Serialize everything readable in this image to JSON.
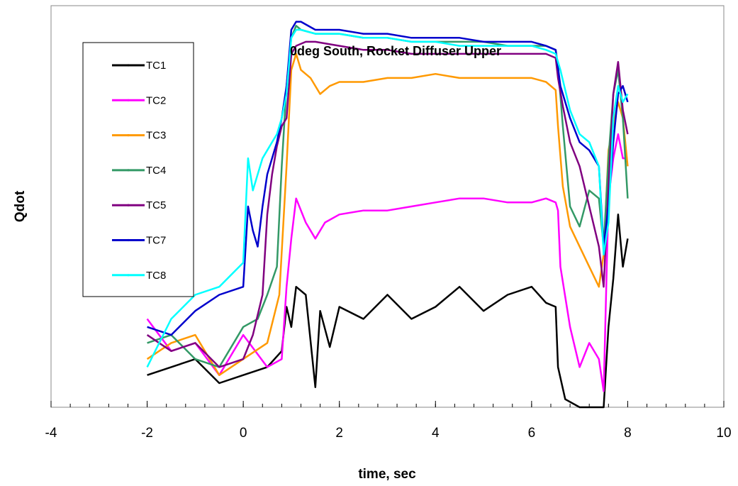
{
  "chart_data": {
    "type": "line",
    "title": "0deg South, Rocket Diffuser Upper",
    "xlabel": "time, sec",
    "ylabel": "Qdot",
    "xlim": [
      -4,
      10
    ],
    "ylim": [
      0,
      100
    ],
    "x_ticks": [
      -4,
      -2,
      0,
      2,
      4,
      6,
      8,
      10
    ],
    "x_tick_labels": [
      "-4",
      "-2",
      "0",
      "2",
      "4",
      "6",
      "8",
      "10"
    ],
    "y_ticks_labeled": false,
    "grid": false,
    "legend_position": "top-left",
    "series": [
      {
        "name": "TC1",
        "color": "#000000",
        "x": [
          -2,
          -1.5,
          -1,
          -0.5,
          0,
          0.5,
          0.8,
          0.9,
          1.0,
          1.1,
          1.3,
          1.5,
          1.6,
          1.8,
          2,
          2.5,
          3,
          3.5,
          4,
          4.5,
          5,
          5.5,
          6,
          6.3,
          6.5,
          6.55,
          6.7,
          7.0,
          7.3,
          7.5,
          7.6,
          7.7,
          7.8,
          7.9,
          8.0
        ],
        "y": [
          8,
          10,
          12,
          6,
          8,
          10,
          14,
          25,
          20,
          30,
          28,
          5,
          24,
          15,
          25,
          22,
          28,
          22,
          25,
          30,
          24,
          28,
          30,
          26,
          25,
          10,
          2,
          0,
          0,
          0,
          20,
          32,
          48,
          35,
          42
        ]
      },
      {
        "name": "TC2",
        "color": "#ff00ff",
        "x": [
          -2,
          -1.5,
          -1,
          -0.5,
          0,
          0.5,
          0.8,
          0.9,
          1.0,
          1.1,
          1.3,
          1.5,
          1.7,
          2,
          2.5,
          3,
          3.5,
          4,
          4.5,
          5,
          5.5,
          6,
          6.3,
          6.5,
          6.55,
          6.6,
          6.8,
          7.0,
          7.2,
          7.4,
          7.5,
          7.6,
          7.7,
          7.8,
          7.9,
          8.0
        ],
        "y": [
          22,
          14,
          16,
          8,
          18,
          10,
          12,
          30,
          42,
          52,
          46,
          42,
          46,
          48,
          49,
          49,
          50,
          51,
          52,
          52,
          51,
          51,
          52,
          51,
          49,
          35,
          20,
          10,
          16,
          12,
          4,
          52,
          62,
          68,
          62,
          62
        ]
      },
      {
        "name": "TC3",
        "color": "#ff9900",
        "x": [
          -2,
          -1.5,
          -1,
          -0.5,
          0,
          0.5,
          0.75,
          0.9,
          1.0,
          1.1,
          1.2,
          1.4,
          1.6,
          1.8,
          2,
          2.5,
          3,
          3.5,
          4,
          4.5,
          5,
          5.5,
          6,
          6.3,
          6.5,
          6.55,
          6.65,
          6.8,
          7.0,
          7.2,
          7.4,
          7.5,
          7.6,
          7.7,
          7.8,
          7.9,
          8.0
        ],
        "y": [
          12,
          16,
          18,
          8,
          12,
          16,
          28,
          60,
          84,
          88,
          84,
          82,
          78,
          80,
          81,
          81,
          82,
          82,
          83,
          82,
          82,
          82,
          82,
          81,
          79,
          70,
          55,
          45,
          40,
          35,
          30,
          38,
          64,
          70,
          76,
          72,
          60
        ]
      },
      {
        "name": "TC4",
        "color": "#339966",
        "x": [
          -2,
          -1.5,
          -1,
          -0.5,
          0,
          0.3,
          0.5,
          0.7,
          0.8,
          0.9,
          1.0,
          1.1,
          1.2,
          1.5,
          2,
          2.5,
          3,
          3.5,
          4,
          4.5,
          5,
          5.5,
          6,
          6.3,
          6.5,
          6.55,
          6.65,
          6.8,
          7.0,
          7.2,
          7.4,
          7.5,
          7.6,
          7.7,
          7.8,
          7.9,
          8.0
        ],
        "y": [
          16,
          18,
          12,
          10,
          20,
          22,
          28,
          35,
          60,
          80,
          92,
          95,
          94,
          93,
          93,
          92,
          92,
          91,
          91,
          91,
          91,
          90,
          90,
          90,
          89,
          85,
          70,
          50,
          45,
          54,
          52,
          40,
          62,
          78,
          84,
          72,
          52
        ]
      },
      {
        "name": "TC5",
        "color": "#800080",
        "x": [
          -2,
          -1.5,
          -1,
          -0.5,
          0,
          0.2,
          0.4,
          0.5,
          0.6,
          0.7,
          0.8,
          0.9,
          1.0,
          1.1,
          1.3,
          1.5,
          2,
          2.5,
          3,
          3.5,
          4,
          4.5,
          5,
          5.5,
          6,
          6.3,
          6.5,
          6.55,
          6.65,
          6.8,
          7.0,
          7.2,
          7.4,
          7.5,
          7.6,
          7.7,
          7.8,
          7.9,
          8.0
        ],
        "y": [
          18,
          14,
          16,
          10,
          12,
          18,
          28,
          48,
          58,
          65,
          70,
          72,
          88,
          90,
          91,
          91,
          90,
          89,
          89,
          88,
          88,
          88,
          88,
          88,
          88,
          88,
          87,
          82,
          75,
          66,
          60,
          50,
          40,
          30,
          55,
          78,
          86,
          74,
          68
        ]
      },
      {
        "name": "TC7",
        "color": "#0000cc",
        "x": [
          -2,
          -1.5,
          -1,
          -0.5,
          0,
          0.1,
          0.2,
          0.3,
          0.4,
          0.5,
          0.6,
          0.7,
          0.8,
          0.9,
          1.0,
          1.1,
          1.2,
          1.5,
          2,
          2.5,
          3,
          3.5,
          4,
          4.5,
          5,
          5.5,
          6,
          6.3,
          6.5,
          6.6,
          6.8,
          7.0,
          7.2,
          7.4,
          7.5,
          7.6,
          7.7,
          7.8,
          7.9,
          8.0
        ],
        "y": [
          20,
          18,
          24,
          28,
          30,
          50,
          44,
          40,
          50,
          58,
          62,
          66,
          72,
          80,
          94,
          96,
          96,
          94,
          94,
          93,
          93,
          92,
          92,
          92,
          91,
          91,
          91,
          90,
          89,
          80,
          72,
          66,
          64,
          60,
          40,
          50,
          66,
          78,
          80,
          76
        ]
      },
      {
        "name": "TC8",
        "color": "#00ffff",
        "x": [
          -2,
          -1.5,
          -1,
          -0.5,
          0,
          0.1,
          0.2,
          0.3,
          0.4,
          0.5,
          0.6,
          0.7,
          0.8,
          0.9,
          1.0,
          1.1,
          1.2,
          1.5,
          2,
          2.5,
          3,
          3.5,
          4,
          4.5,
          5,
          5.5,
          6,
          6.3,
          6.5,
          6.6,
          6.8,
          7.0,
          7.2,
          7.4,
          7.5,
          7.6,
          7.7,
          7.8,
          7.9,
          8.0
        ],
        "y": [
          10,
          22,
          28,
          30,
          36,
          62,
          54,
          58,
          62,
          64,
          66,
          68,
          72,
          78,
          92,
          94,
          94,
          93,
          93,
          92,
          92,
          91,
          91,
          90,
          90,
          90,
          90,
          89,
          88,
          84,
          74,
          68,
          66,
          60,
          38,
          46,
          72,
          80,
          76,
          78
        ]
      }
    ]
  }
}
